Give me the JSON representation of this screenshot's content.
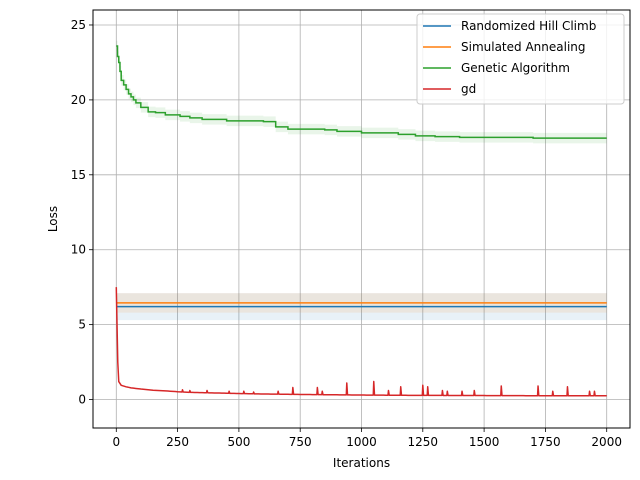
{
  "chart_data": {
    "type": "line",
    "title": "",
    "xlabel": "Iterations",
    "ylabel": "Loss",
    "xlim": [
      -95,
      2095
    ],
    "ylim": [
      -1.9,
      26
    ],
    "xticks": [
      0,
      250,
      500,
      750,
      1000,
      1250,
      1500,
      1750,
      2000
    ],
    "yticks": [
      0,
      5,
      10,
      15,
      20,
      25
    ],
    "grid": true,
    "legend_position": "top-right",
    "series": [
      {
        "name": "Randomized Hill Climb",
        "color": "#1f77b4",
        "style": "constant",
        "x": [
          0,
          2000
        ],
        "y": [
          6.2,
          6.2
        ],
        "band": [
          5.3,
          7.1
        ]
      },
      {
        "name": "Simulated Annealing",
        "color": "#ff7f0e",
        "style": "constant",
        "x": [
          0,
          2000
        ],
        "y": [
          6.45,
          6.45
        ],
        "band": [
          5.8,
          7.1
        ]
      },
      {
        "name": "Genetic Algorithm",
        "color": "#2ca02c",
        "style": "step",
        "x": [
          0,
          5,
          10,
          15,
          20,
          30,
          40,
          50,
          60,
          70,
          80,
          100,
          130,
          160,
          200,
          260,
          300,
          350,
          450,
          600,
          650,
          700,
          850,
          900,
          1000,
          1150,
          1220,
          1300,
          1400,
          1700,
          2000
        ],
        "y": [
          23.6,
          22.9,
          22.5,
          21.9,
          21.3,
          21.0,
          20.7,
          20.4,
          20.2,
          20.0,
          19.8,
          19.5,
          19.2,
          19.15,
          19.0,
          18.9,
          18.8,
          18.7,
          18.6,
          18.55,
          18.2,
          18.05,
          18.0,
          17.9,
          17.8,
          17.7,
          17.6,
          17.55,
          17.5,
          17.45,
          17.45
        ],
        "band_width": 0.35
      },
      {
        "name": "gd",
        "color": "#d62728",
        "style": "decay",
        "x": [
          0,
          3,
          6,
          10,
          20,
          40,
          60,
          100,
          150,
          200,
          250,
          300,
          400,
          500,
          600,
          700,
          800,
          1000,
          1200,
          1400,
          1600,
          1800,
          2000
        ],
        "y": [
          7.5,
          5.0,
          2.5,
          1.2,
          0.95,
          0.85,
          0.78,
          0.7,
          0.62,
          0.58,
          0.52,
          0.48,
          0.44,
          0.4,
          0.37,
          0.35,
          0.33,
          0.3,
          0.28,
          0.27,
          0.26,
          0.25,
          0.25
        ],
        "spikes": [
          [
            270,
            0.65
          ],
          [
            300,
            0.6
          ],
          [
            370,
            0.6
          ],
          [
            460,
            0.55
          ],
          [
            520,
            0.55
          ],
          [
            560,
            0.5
          ],
          [
            660,
            0.55
          ],
          [
            720,
            0.8
          ],
          [
            820,
            0.8
          ],
          [
            840,
            0.55
          ],
          [
            940,
            1.1
          ],
          [
            1050,
            1.2
          ],
          [
            1110,
            0.6
          ],
          [
            1160,
            0.85
          ],
          [
            1250,
            0.95
          ],
          [
            1270,
            0.85
          ],
          [
            1330,
            0.6
          ],
          [
            1350,
            0.55
          ],
          [
            1410,
            0.55
          ],
          [
            1460,
            0.6
          ],
          [
            1570,
            0.9
          ],
          [
            1720,
            0.9
          ],
          [
            1780,
            0.55
          ],
          [
            1840,
            0.85
          ],
          [
            1930,
            0.55
          ],
          [
            1950,
            0.55
          ]
        ]
      }
    ]
  }
}
